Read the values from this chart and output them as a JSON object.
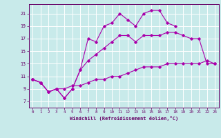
{
  "background_color": "#c8eaea",
  "grid_color": "#aad4d4",
  "line_color": "#aa00aa",
  "xlabel": "Windchill (Refroidissement éolien,°C)",
  "ylabel_ticks": [
    7,
    9,
    11,
    13,
    15,
    17,
    19,
    21
  ],
  "xlim": [
    -0.5,
    23.5
  ],
  "ylim": [
    6.0,
    22.5
  ],
  "xticks": [
    0,
    1,
    2,
    3,
    4,
    5,
    6,
    7,
    8,
    9,
    10,
    11,
    12,
    13,
    14,
    15,
    16,
    17,
    18,
    19,
    20,
    21,
    22,
    23
  ],
  "line1_x": [
    0,
    1,
    2,
    3,
    4,
    5,
    6,
    7,
    8,
    9,
    10,
    11,
    12,
    13,
    14,
    15,
    16,
    17,
    18
  ],
  "line1_y": [
    10.5,
    10.0,
    8.5,
    9.0,
    7.5,
    9.0,
    12.0,
    17.0,
    16.5,
    19.0,
    19.5,
    21.0,
    20.0,
    19.0,
    21.0,
    21.5,
    21.5,
    19.5,
    19.0
  ],
  "line2_x": [
    0,
    1,
    2,
    3,
    4,
    5,
    6,
    7,
    8,
    9,
    10,
    11,
    12,
    13,
    14,
    15,
    16,
    17,
    18,
    19,
    20,
    21,
    22,
    23
  ],
  "line2_y": [
    10.5,
    10.0,
    8.5,
    9.0,
    7.5,
    9.0,
    12.0,
    13.5,
    14.5,
    15.5,
    16.5,
    17.5,
    17.5,
    16.5,
    17.5,
    17.5,
    17.5,
    18.0,
    18.0,
    17.5,
    17.0,
    17.0,
    13.0,
    13.0
  ],
  "line3_x": [
    0,
    1,
    2,
    3,
    4,
    5,
    6,
    7,
    8,
    9,
    10,
    11,
    12,
    13,
    14,
    15,
    16,
    17,
    18,
    19,
    20,
    21,
    22,
    23
  ],
  "line3_y": [
    10.5,
    10.0,
    8.5,
    9.0,
    9.0,
    9.5,
    9.5,
    10.0,
    10.5,
    10.5,
    11.0,
    11.0,
    11.5,
    12.0,
    12.5,
    12.5,
    12.5,
    13.0,
    13.0,
    13.0,
    13.0,
    13.0,
    13.5,
    13.0
  ]
}
